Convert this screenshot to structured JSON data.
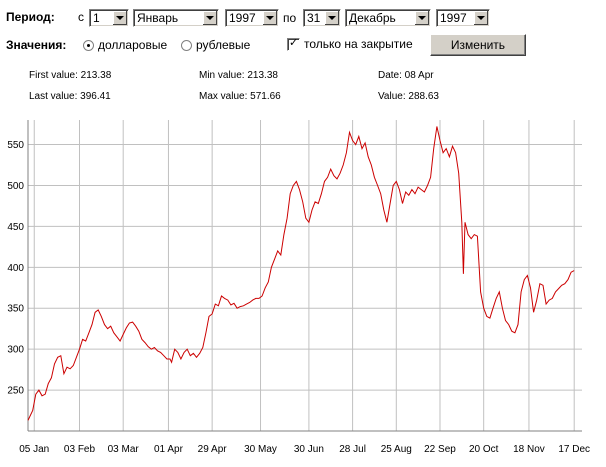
{
  "toolbar": {
    "period_label": "Период:",
    "from_label": "с",
    "from_day": "1",
    "from_month": "Январь",
    "from_year": "1997",
    "to_label": "по",
    "to_day": "31",
    "to_month": "Декабрь",
    "to_year": "1997",
    "values_label": "Значения:",
    "radio_dollar": "долларовые",
    "radio_dollar_checked": true,
    "radio_ruble": "рублевые",
    "radio_ruble_checked": false,
    "close_only_label": "только на закрытие",
    "close_only_checked": true,
    "change_button": "Изменить"
  },
  "stats": {
    "first_value": "First value: 213.38",
    "last_value": "Last value: 396.41",
    "min_value": "Min value: 213.38",
    "max_value": "Max value: 571.66",
    "date": "Date: 08 Apr",
    "value": "Value: 288.63"
  },
  "colors": {
    "line": "#cc0000",
    "grid": "#c0c0c0"
  },
  "chart_data": {
    "type": "line",
    "ylim": [
      200,
      580
    ],
    "yticks": [
      250,
      300,
      350,
      400,
      450,
      500,
      550
    ],
    "xlim": [
      0,
      355
    ],
    "xticks": [
      {
        "x": 4,
        "label": "05 Jan"
      },
      {
        "x": 33,
        "label": "03 Feb"
      },
      {
        "x": 61,
        "label": "03 Mar"
      },
      {
        "x": 90,
        "label": "01 Apr"
      },
      {
        "x": 118,
        "label": "29 Apr"
      },
      {
        "x": 149,
        "label": "30 May"
      },
      {
        "x": 180,
        "label": "30 Jun"
      },
      {
        "x": 208,
        "label": "28 Jul"
      },
      {
        "x": 236,
        "label": "25 Aug"
      },
      {
        "x": 264,
        "label": "22 Sep"
      },
      {
        "x": 292,
        "label": "20 Oct"
      },
      {
        "x": 321,
        "label": "18 Nov"
      },
      {
        "x": 350,
        "label": "17 Dec"
      }
    ],
    "series": [
      {
        "points": [
          [
            0,
            213
          ],
          [
            3,
            225
          ],
          [
            5,
            245
          ],
          [
            7,
            250
          ],
          [
            9,
            243
          ],
          [
            11,
            245
          ],
          [
            13,
            258
          ],
          [
            15,
            265
          ],
          [
            17,
            282
          ],
          [
            19,
            290
          ],
          [
            21,
            292
          ],
          [
            23,
            270
          ],
          [
            25,
            278
          ],
          [
            27,
            276
          ],
          [
            29,
            280
          ],
          [
            31,
            290
          ],
          [
            33,
            300
          ],
          [
            35,
            312
          ],
          [
            37,
            310
          ],
          [
            39,
            320
          ],
          [
            41,
            330
          ],
          [
            43,
            345
          ],
          [
            45,
            348
          ],
          [
            47,
            340
          ],
          [
            49,
            330
          ],
          [
            51,
            325
          ],
          [
            53,
            328
          ],
          [
            55,
            320
          ],
          [
            57,
            315
          ],
          [
            59,
            310
          ],
          [
            61,
            318
          ],
          [
            63,
            326
          ],
          [
            65,
            332
          ],
          [
            67,
            333
          ],
          [
            69,
            328
          ],
          [
            71,
            322
          ],
          [
            73,
            312
          ],
          [
            75,
            308
          ],
          [
            77,
            303
          ],
          [
            79,
            300
          ],
          [
            81,
            302
          ],
          [
            83,
            298
          ],
          [
            85,
            296
          ],
          [
            87,
            292
          ],
          [
            89,
            288
          ],
          [
            91,
            288
          ],
          [
            92,
            284
          ],
          [
            94,
            300
          ],
          [
            96,
            296
          ],
          [
            98,
            288
          ],
          [
            100,
            296
          ],
          [
            102,
            300
          ],
          [
            104,
            292
          ],
          [
            106,
            295
          ],
          [
            108,
            290
          ],
          [
            110,
            295
          ],
          [
            112,
            302
          ],
          [
            114,
            320
          ],
          [
            116,
            340
          ],
          [
            118,
            343
          ],
          [
            120,
            355
          ],
          [
            122,
            353
          ],
          [
            124,
            365
          ],
          [
            126,
            362
          ],
          [
            128,
            360
          ],
          [
            130,
            354
          ],
          [
            132,
            356
          ],
          [
            134,
            350
          ],
          [
            136,
            352
          ],
          [
            138,
            353
          ],
          [
            140,
            355
          ],
          [
            142,
            357
          ],
          [
            144,
            360
          ],
          [
            146,
            362
          ],
          [
            148,
            362
          ],
          [
            150,
            365
          ],
          [
            152,
            375
          ],
          [
            154,
            382
          ],
          [
            156,
            400
          ],
          [
            158,
            410
          ],
          [
            160,
            420
          ],
          [
            162,
            415
          ],
          [
            164,
            440
          ],
          [
            166,
            460
          ],
          [
            168,
            490
          ],
          [
            170,
            500
          ],
          [
            172,
            505
          ],
          [
            174,
            495
          ],
          [
            176,
            480
          ],
          [
            178,
            460
          ],
          [
            180,
            455
          ],
          [
            182,
            470
          ],
          [
            184,
            480
          ],
          [
            186,
            478
          ],
          [
            188,
            490
          ],
          [
            190,
            505
          ],
          [
            192,
            510
          ],
          [
            194,
            520
          ],
          [
            196,
            512
          ],
          [
            198,
            508
          ],
          [
            200,
            515
          ],
          [
            202,
            525
          ],
          [
            204,
            540
          ],
          [
            206,
            565
          ],
          [
            208,
            555
          ],
          [
            210,
            550
          ],
          [
            212,
            560
          ],
          [
            214,
            545
          ],
          [
            216,
            552
          ],
          [
            218,
            535
          ],
          [
            220,
            525
          ],
          [
            222,
            510
          ],
          [
            224,
            500
          ],
          [
            226,
            490
          ],
          [
            228,
            470
          ],
          [
            230,
            455
          ],
          [
            232,
            478
          ],
          [
            234,
            500
          ],
          [
            236,
            505
          ],
          [
            238,
            495
          ],
          [
            240,
            478
          ],
          [
            242,
            492
          ],
          [
            244,
            488
          ],
          [
            246,
            495
          ],
          [
            248,
            490
          ],
          [
            250,
            498
          ],
          [
            252,
            495
          ],
          [
            254,
            492
          ],
          [
            256,
            500
          ],
          [
            258,
            510
          ],
          [
            260,
            545
          ],
          [
            262,
            572
          ],
          [
            264,
            555
          ],
          [
            266,
            540
          ],
          [
            268,
            545
          ],
          [
            270,
            535
          ],
          [
            272,
            548
          ],
          [
            274,
            540
          ],
          [
            276,
            515
          ],
          [
            278,
            455
          ],
          [
            279,
            392
          ],
          [
            280,
            455
          ],
          [
            282,
            440
          ],
          [
            284,
            435
          ],
          [
            286,
            440
          ],
          [
            288,
            438
          ],
          [
            290,
            370
          ],
          [
            292,
            350
          ],
          [
            294,
            340
          ],
          [
            296,
            338
          ],
          [
            298,
            350
          ],
          [
            300,
            362
          ],
          [
            302,
            370
          ],
          [
            304,
            350
          ],
          [
            306,
            335
          ],
          [
            308,
            330
          ],
          [
            310,
            322
          ],
          [
            312,
            320
          ],
          [
            314,
            330
          ],
          [
            316,
            370
          ],
          [
            318,
            385
          ],
          [
            320,
            390
          ],
          [
            322,
            375
          ],
          [
            324,
            345
          ],
          [
            326,
            360
          ],
          [
            328,
            380
          ],
          [
            330,
            378
          ],
          [
            332,
            355
          ],
          [
            334,
            360
          ],
          [
            336,
            362
          ],
          [
            338,
            370
          ],
          [
            340,
            374
          ],
          [
            342,
            378
          ],
          [
            344,
            380
          ],
          [
            346,
            385
          ],
          [
            348,
            394
          ],
          [
            350,
            396
          ]
        ]
      }
    ]
  }
}
